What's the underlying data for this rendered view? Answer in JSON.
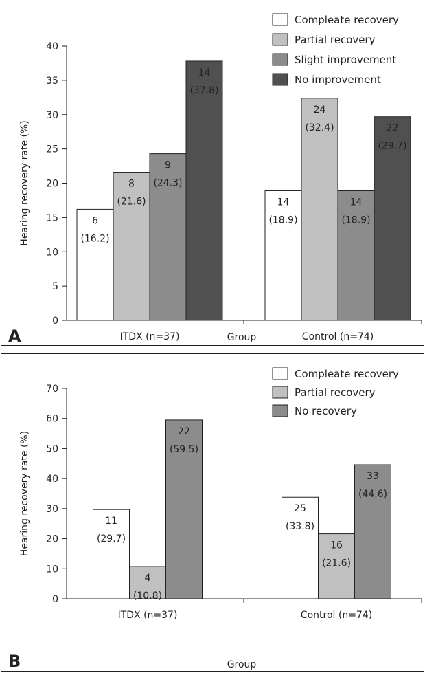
{
  "chart_data": [
    {
      "type": "bar",
      "panel_label": "A",
      "categories": [
        "ITDX (n=37)",
        "Control (n=74)"
      ],
      "xlabel": "Group",
      "ylabel": "Hearing recovery rate (%)",
      "ylim": [
        0,
        40
      ],
      "yticks": [
        "0",
        "5",
        "10",
        "15",
        "20",
        "25",
        "30",
        "35",
        "40"
      ],
      "grid": false,
      "legend_position": "top-right",
      "series": [
        {
          "name": "Compleate recovery",
          "color": "#ffffff",
          "values": [
            16.2,
            18.9
          ],
          "labels": [
            [
              "6",
              "(16.2)"
            ],
            [
              "14",
              "(18.9)"
            ]
          ]
        },
        {
          "name": "Partial recovery",
          "color": "#c0c0c0",
          "values": [
            21.6,
            32.4
          ],
          "labels": [
            [
              "8",
              "(21.6)"
            ],
            [
              "24",
              "(32.4)"
            ]
          ]
        },
        {
          "name": "Slight improvement",
          "color": "#8c8c8c",
          "values": [
            24.3,
            18.9
          ],
          "labels": [
            [
              "9",
              "(24.3)"
            ],
            [
              "14",
              "(18.9)"
            ]
          ]
        },
        {
          "name": "No improvement",
          "color": "#505050",
          "values": [
            37.8,
            29.7
          ],
          "labels": [
            [
              "14",
              "(37.8)"
            ],
            [
              "22",
              "(29.7)"
            ]
          ]
        }
      ]
    },
    {
      "type": "bar",
      "panel_label": "B",
      "categories": [
        "ITDX (n=37)",
        "Control (n=74)"
      ],
      "xlabel": "Group",
      "ylabel": "Hearing recovery rate (%)",
      "ylim": [
        0,
        70
      ],
      "yticks": [
        "0",
        "10",
        "20",
        "30",
        "40",
        "50",
        "60",
        "70"
      ],
      "grid": false,
      "legend_position": "top-right",
      "series": [
        {
          "name": "Compleate recovery",
          "color": "#ffffff",
          "values": [
            29.7,
            33.8
          ],
          "labels": [
            [
              "11",
              "(29.7)"
            ],
            [
              "25",
              "(33.8)"
            ]
          ]
        },
        {
          "name": "Partial recovery",
          "color": "#c0c0c0",
          "values": [
            10.8,
            21.6
          ],
          "labels": [
            [
              "4",
              "(10.8)"
            ],
            [
              "16",
              "(21.6)"
            ]
          ]
        },
        {
          "name": "No recovery",
          "color": "#8c8c8c",
          "values": [
            59.5,
            44.6
          ],
          "labels": [
            [
              "22",
              "(59.5)"
            ],
            [
              "33",
              "(44.6)"
            ]
          ]
        }
      ]
    }
  ]
}
